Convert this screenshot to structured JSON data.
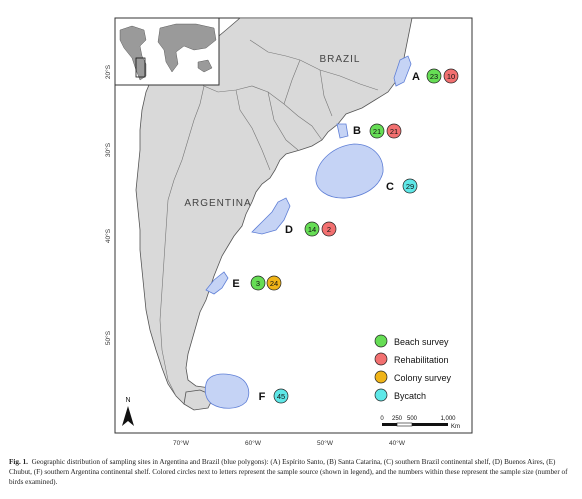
{
  "map": {
    "country_labels": [
      "BRAZIL",
      "ARGENTINA"
    ],
    "lat_labels": [
      "20°S",
      "30°S",
      "40°S",
      "50°S"
    ],
    "lon_labels": [
      "70°W",
      "60°W",
      "50°W",
      "40°W"
    ],
    "north_label": "N",
    "scale_bar": {
      "ticks": [
        "0",
        "250",
        "500",
        "1,000"
      ],
      "unit": "Km"
    },
    "colors": {
      "land": "#d9d9d9",
      "land_stroke": "#555555",
      "site_fill": "#c5d3f5",
      "site_stroke": "#5f7fd6",
      "beach": "#66dd55",
      "rehab": "#f27070",
      "colony": "#f0b418",
      "bycatch": "#5ee8e8"
    }
  },
  "sites": [
    {
      "letter": "A",
      "name": "Espírito Santo",
      "counts": [
        {
          "value": "23",
          "source": "beach"
        },
        {
          "value": "10",
          "source": "rehab"
        }
      ]
    },
    {
      "letter": "B",
      "name": "Santa Catarina",
      "counts": [
        {
          "value": "21",
          "source": "beach"
        },
        {
          "value": "21",
          "source": "rehab"
        }
      ]
    },
    {
      "letter": "C",
      "name": "southern Brazil continental shelf",
      "counts": [
        {
          "value": "29",
          "source": "bycatch"
        }
      ]
    },
    {
      "letter": "D",
      "name": "Buenos Aires",
      "counts": [
        {
          "value": "14",
          "source": "beach"
        },
        {
          "value": "2",
          "source": "rehab"
        }
      ]
    },
    {
      "letter": "E",
      "name": "Chubut",
      "counts": [
        {
          "value": "3",
          "source": "beach"
        },
        {
          "value": "24",
          "source": "colony"
        }
      ]
    },
    {
      "letter": "F",
      "name": "southern Argentina continental shelf",
      "counts": [
        {
          "value": "45",
          "source": "bycatch"
        }
      ]
    }
  ],
  "legend": [
    {
      "key": "beach",
      "label": "Beach survey"
    },
    {
      "key": "rehab",
      "label": "Rehabilitation"
    },
    {
      "key": "colony",
      "label": "Colony survey"
    },
    {
      "key": "bycatch",
      "label": "Bycatch"
    }
  ],
  "caption": {
    "fig": "Fig. 1.",
    "text": "Geographic distribution of sampling sites in Argentina and Brazil (blue polygons): (A) Espírito Santo, (B) Santa Catarina, (C) southern Brazil continental shelf, (D) Buenos Aires, (E) Chubut, (F) southern Argentina continental shelf. Colored circles next to letters represent the sample source (shown in legend), and the numbers within these represent the sample size (number of birds examined)."
  }
}
